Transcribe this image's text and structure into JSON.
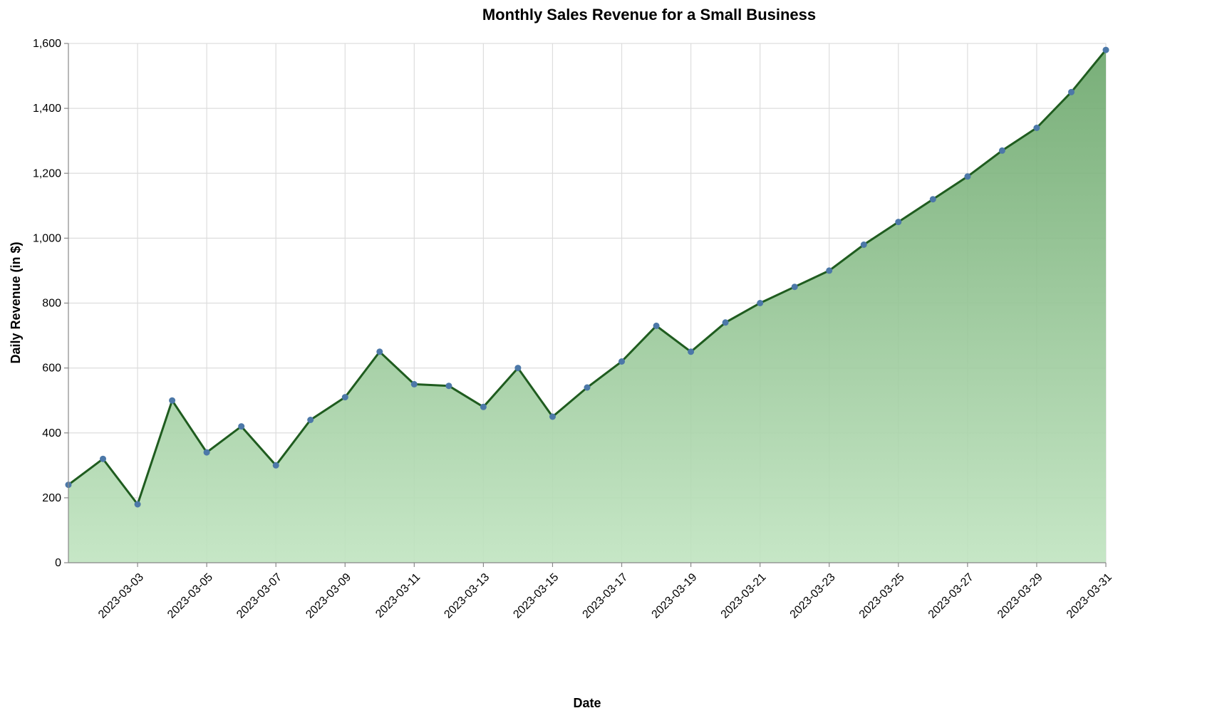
{
  "colors": {
    "line": "#1f5c1f",
    "point": "#4c78a8",
    "area_top": "#6aa66a",
    "area_bottom": "#c0e4c0"
  },
  "chart_data": {
    "type": "area",
    "title": "Monthly Sales Revenue for a Small Business",
    "xlabel": "Date",
    "ylabel": "Daily Revenue (in $)",
    "ylim": [
      0,
      1600
    ],
    "xlim": [
      "2023-03-01",
      "2023-03-31"
    ],
    "y_ticks": [
      0,
      200,
      400,
      600,
      800,
      1000,
      1200,
      1400,
      1600
    ],
    "y_tick_labels": [
      "0",
      "200",
      "400",
      "600",
      "800",
      "1,000",
      "1,200",
      "1,400",
      "1,600"
    ],
    "x_ticks": [
      "2023-03-03",
      "2023-03-05",
      "2023-03-07",
      "2023-03-09",
      "2023-03-11",
      "2023-03-13",
      "2023-03-15",
      "2023-03-17",
      "2023-03-19",
      "2023-03-21",
      "2023-03-23",
      "2023-03-25",
      "2023-03-27",
      "2023-03-29",
      "2023-03-31"
    ],
    "grid": true,
    "legend": "none",
    "x": [
      "2023-03-01",
      "2023-03-02",
      "2023-03-03",
      "2023-03-04",
      "2023-03-05",
      "2023-03-06",
      "2023-03-07",
      "2023-03-08",
      "2023-03-09",
      "2023-03-10",
      "2023-03-11",
      "2023-03-12",
      "2023-03-13",
      "2023-03-14",
      "2023-03-15",
      "2023-03-16",
      "2023-03-17",
      "2023-03-18",
      "2023-03-19",
      "2023-03-20",
      "2023-03-21",
      "2023-03-22",
      "2023-03-23",
      "2023-03-24",
      "2023-03-25",
      "2023-03-26",
      "2023-03-27",
      "2023-03-28",
      "2023-03-29",
      "2023-03-30",
      "2023-03-31"
    ],
    "values": [
      240,
      320,
      180,
      500,
      340,
      420,
      300,
      440,
      510,
      650,
      550,
      545,
      480,
      600,
      450,
      540,
      620,
      730,
      650,
      740,
      800,
      850,
      900,
      980,
      1050,
      1120,
      1190,
      1270,
      1340,
      1450,
      1580
    ]
  }
}
